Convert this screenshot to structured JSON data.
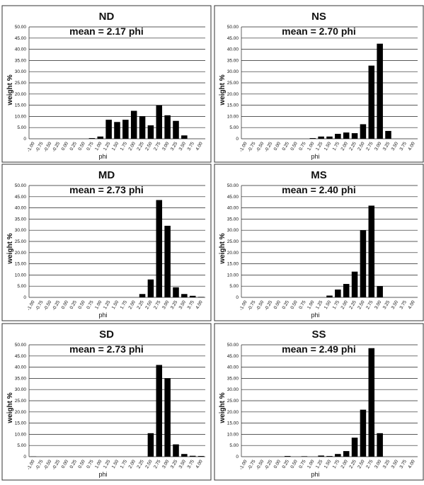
{
  "chart_data": [
    {
      "type": "bar",
      "title": "ND",
      "annotation": "mean = 2.17 phi",
      "x_label": "phi",
      "y_label": "weight %",
      "color": "#000000",
      "grid": true,
      "categories": [
        "-1.00",
        "-0.75",
        "-0.50",
        "-0.25",
        "0.00",
        "0.25",
        "0.50",
        "0.75",
        "1.00",
        "1.25",
        "1.50",
        "1.75",
        "2.00",
        "2.25",
        "2.50",
        "2.75",
        "3.00",
        "3.25",
        "3.50",
        "3.75",
        "4.00"
      ],
      "values": [
        0,
        0,
        0,
        0,
        0,
        0,
        0,
        0.3,
        1,
        8.5,
        7.5,
        8.5,
        12.5,
        10,
        6,
        15,
        10.5,
        8,
        1.5,
        0,
        0
      ],
      "ylim": [
        0,
        50
      ],
      "yticks": [
        0,
        {
          "value": 5,
          "label": "5.00"
        },
        {
          "value": 10,
          "label": "10.00"
        },
        {
          "value": 15,
          "label": "15.00"
        },
        {
          "value": 20,
          "label": "20.00"
        },
        {
          "value": 25,
          "label": "25.00"
        },
        {
          "value": 30,
          "label": "30.00"
        },
        {
          "value": 35,
          "label": "35.00"
        },
        {
          "value": 40,
          "label": "40.00"
        },
        {
          "value": 45,
          "label": "45.00"
        },
        {
          "value": 50,
          "label": "50.00"
        }
      ]
    },
    {
      "type": "bar",
      "title": "NS",
      "annotation": "mean = 2.70 phi",
      "x_label": "phi",
      "y_label": "weight %",
      "color": "#000000",
      "grid": true,
      "categories": [
        "-1.00",
        "-0.75",
        "-0.50",
        "-0.25",
        "0.00",
        "0.25",
        "0.50",
        "0.75",
        "1.00",
        "1.25",
        "1.50",
        "1.75",
        "2.00",
        "2.25",
        "2.50",
        "2.75",
        "3.00",
        "3.25",
        "3.50",
        "3.75",
        "4.00"
      ],
      "values": [
        0,
        0,
        0,
        0,
        0,
        0,
        0,
        0,
        0.3,
        1,
        1,
        2.2,
        2.8,
        2.5,
        6.5,
        32.7,
        42.5,
        3.5,
        0,
        0,
        0
      ],
      "ylim": [
        0,
        50
      ],
      "yticks": [
        0,
        {
          "value": 5,
          "label": "5.00"
        },
        {
          "value": 10,
          "label": "10.00"
        },
        {
          "value": 15,
          "label": "15.00"
        },
        {
          "value": 20,
          "label": "20.00"
        },
        {
          "value": 25,
          "label": "25.00"
        },
        {
          "value": 30,
          "label": "30.00"
        },
        {
          "value": 35,
          "label": "35.00"
        },
        {
          "value": 40,
          "label": "40.00"
        },
        {
          "value": 45,
          "label": "45.00"
        },
        {
          "value": 50,
          "label": "50.00"
        }
      ]
    },
    {
      "type": "bar",
      "title": "MD",
      "annotation": "mean = 2.73 phi",
      "x_label": "phi",
      "y_label": "weight %",
      "color": "#000000",
      "grid": true,
      "categories": [
        "-1.00",
        "-0.75",
        "-0.50",
        "-0.25",
        "0.00",
        "0.25",
        "0.50",
        "0.75",
        "1.00",
        "1.25",
        "1.50",
        "1.75",
        "2.00",
        "2.25",
        "2.50",
        "2.75",
        "3.00",
        "3.25",
        "3.50",
        "3.75",
        "4.00"
      ],
      "values": [
        0,
        0,
        0,
        0,
        0,
        0,
        0,
        0,
        0,
        0,
        0,
        0,
        0,
        1.5,
        8,
        43.5,
        32,
        4.5,
        1.5,
        0.7,
        0.2
      ],
      "ylim": [
        0,
        50
      ],
      "yticks": [
        0,
        {
          "value": 5,
          "label": "5.00"
        },
        {
          "value": 10,
          "label": "10.00"
        },
        {
          "value": 15,
          "label": "15.00"
        },
        {
          "value": 20,
          "label": "20.00"
        },
        {
          "value": 25,
          "label": "25.00"
        },
        {
          "value": 30,
          "label": "30.00"
        },
        {
          "value": 35,
          "label": "35.00"
        },
        {
          "value": 40,
          "label": "40.00"
        },
        {
          "value": 45,
          "label": "45.00"
        },
        {
          "value": 50,
          "label": "50.00"
        }
      ]
    },
    {
      "type": "bar",
      "title": "MS",
      "annotation": "mean = 2.40 phi",
      "x_label": "phi",
      "y_label": "weight %",
      "color": "#000000",
      "grid": true,
      "categories": [
        "-1.00",
        "-0.75",
        "-0.50",
        "-0.25",
        "0.00",
        "0.25",
        "0.50",
        "0.75",
        "1.00",
        "1.25",
        "1.50",
        "1.75",
        "2.00",
        "2.25",
        "2.50",
        "2.75",
        "3.00",
        "3.25",
        "3.50",
        "3.75",
        "4.00"
      ],
      "values": [
        0,
        0,
        0,
        0,
        0,
        0,
        0,
        0,
        0,
        0,
        0.8,
        3.5,
        6,
        11.5,
        30,
        41,
        5,
        0,
        0,
        0,
        0
      ],
      "ylim": [
        0,
        50
      ],
      "yticks": [
        0,
        {
          "value": 5,
          "label": "5.00"
        },
        {
          "value": 10,
          "label": "10.00"
        },
        {
          "value": 15,
          "label": "15.00"
        },
        {
          "value": 20,
          "label": "20.00"
        },
        {
          "value": 25,
          "label": "25.00"
        },
        {
          "value": 30,
          "label": "30.00"
        },
        {
          "value": 35,
          "label": "35.00"
        },
        {
          "value": 40,
          "label": "40.00"
        },
        {
          "value": 45,
          "label": "45.00"
        },
        {
          "value": 50,
          "label": "50.00"
        }
      ]
    },
    {
      "type": "bar",
      "title": "SD",
      "annotation": "mean = 2.73 phi",
      "x_label": "phi",
      "y_label": "weight %",
      "color": "#000000",
      "grid": true,
      "categories": [
        "-1.00",
        "-0.75",
        "-0.50",
        "-0.25",
        "0.00",
        "0.25",
        "0.50",
        "0.75",
        "1.00",
        "1.25",
        "1.50",
        "1.75",
        "2.00",
        "2.25",
        "2.50",
        "2.75",
        "3.00",
        "3.25",
        "3.50",
        "3.75",
        "4.00"
      ],
      "values": [
        0.1,
        0,
        0,
        0,
        0,
        0,
        0,
        0,
        0,
        0,
        0,
        0,
        0,
        0,
        10.5,
        41,
        35,
        5.5,
        1.2,
        0.4,
        0.3
      ],
      "ylim": [
        0,
        50
      ],
      "yticks": [
        0,
        {
          "value": 5,
          "label": "5.00"
        },
        {
          "value": 10,
          "label": "10.00"
        },
        {
          "value": 15,
          "label": "15.00"
        },
        {
          "value": 20,
          "label": "20.00"
        },
        {
          "value": 25,
          "label": "25.00"
        },
        {
          "value": 30,
          "label": "30.00"
        },
        {
          "value": 35,
          "label": "35.00"
        },
        {
          "value": 40,
          "label": "40.00"
        },
        {
          "value": 45,
          "label": "45.00"
        },
        {
          "value": 50,
          "label": "50.00"
        }
      ]
    },
    {
      "type": "bar",
      "title": "SS",
      "annotation": "mean = 2.49 phi",
      "x_label": "phi",
      "y_label": "weight %",
      "color": "#000000",
      "grid": true,
      "categories": [
        "-1.00",
        "-0.75",
        "-0.50",
        "-0.25",
        "0.00",
        "0.25",
        "0.50",
        "0.75",
        "1.00",
        "1.25",
        "1.50",
        "1.75",
        "2.00",
        "2.25",
        "2.50",
        "2.75",
        "3.00",
        "3.25",
        "3.50",
        "3.75",
        "4.00"
      ],
      "values": [
        0,
        0,
        0,
        0,
        0,
        0.3,
        0,
        0.2,
        0,
        0.5,
        0.3,
        1.2,
        2.5,
        8.5,
        21,
        48.5,
        10.5,
        0,
        0,
        0,
        0
      ],
      "ylim": [
        0,
        50
      ],
      "yticks": [
        0,
        {
          "value": 5,
          "label": "5.00"
        },
        {
          "value": 10,
          "label": "10.00"
        },
        {
          "value": 15,
          "label": "15.00"
        },
        {
          "value": 20,
          "label": "20.00"
        },
        {
          "value": 25,
          "label": "25.00"
        },
        {
          "value": 30,
          "label": "30.00"
        },
        {
          "value": 35,
          "label": "35.00"
        },
        {
          "value": 40,
          "label": "40.00"
        },
        {
          "value": 45,
          "label": "45.00"
        },
        {
          "value": 50,
          "label": "50.00"
        }
      ]
    }
  ]
}
